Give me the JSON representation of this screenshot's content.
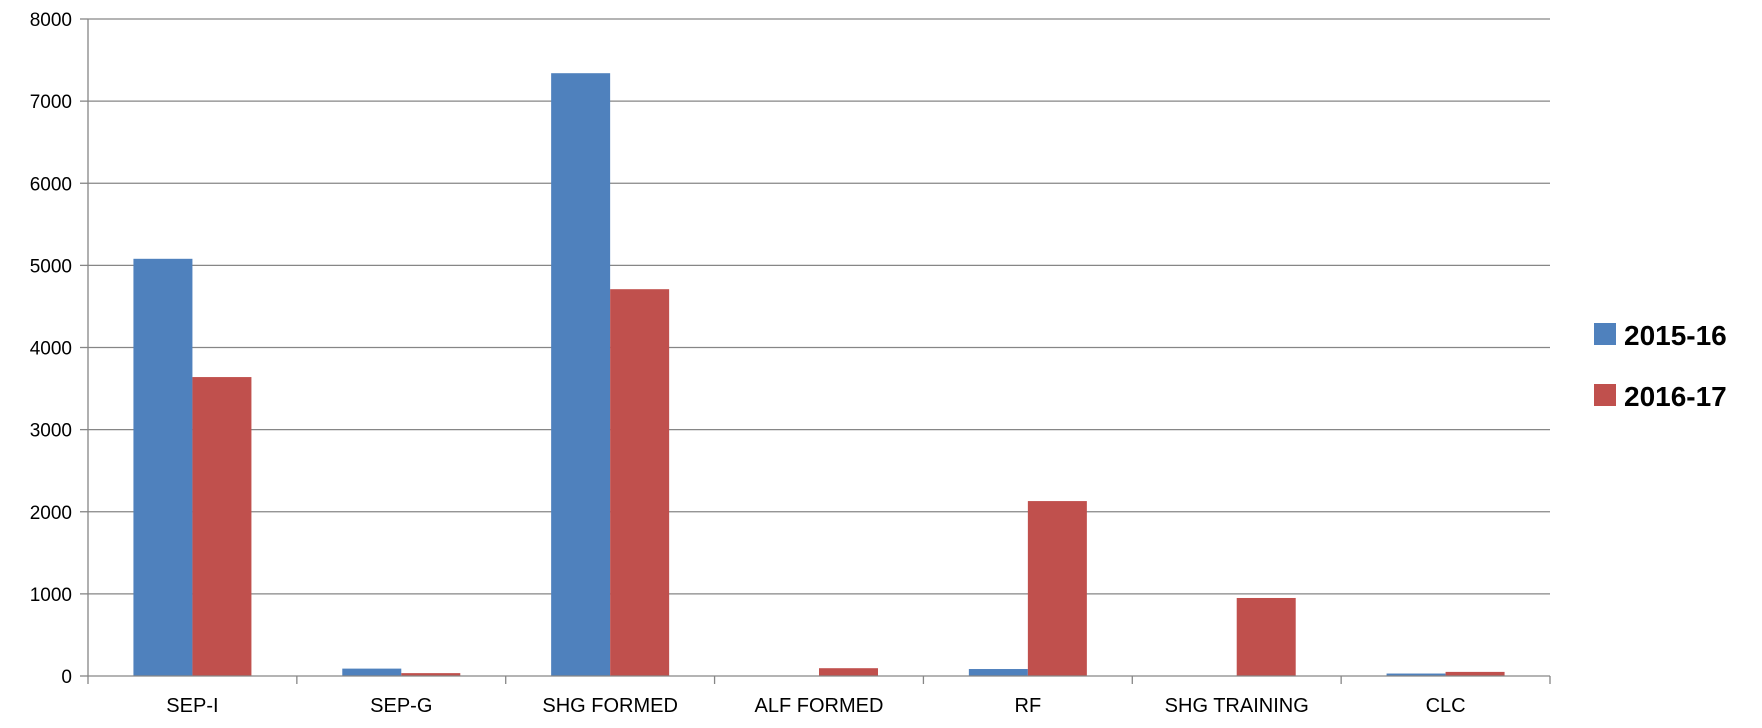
{
  "chart_data": {
    "type": "bar",
    "title": "",
    "xlabel": "",
    "ylabel": "",
    "categories": [
      "SEP-I",
      "SEP-G",
      "SHG FORMED",
      "ALF FORMED",
      "RF",
      "SHG TRAINING",
      "CLC"
    ],
    "series": [
      {
        "name": "2015-16",
        "color": "#4F81BD",
        "values": [
          5080,
          90,
          7340,
          0,
          85,
          0,
          30
        ]
      },
      {
        "name": "2016-17",
        "color": "#C0504D",
        "values": [
          3640,
          35,
          4710,
          95,
          2130,
          950,
          50
        ]
      }
    ],
    "ylim": [
      0,
      8000
    ],
    "yticks": [
      "0",
      "1000",
      "2000",
      "3000",
      "4000",
      "5000",
      "6000",
      "7000",
      "8000"
    ],
    "grid": true,
    "legend_position": "right"
  }
}
